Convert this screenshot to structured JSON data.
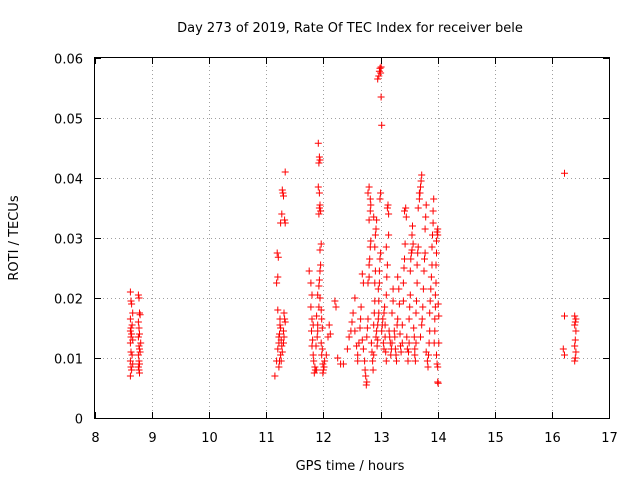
{
  "chart_data": {
    "type": "scatter",
    "title": "Day 273 of 2019, Rate Of TEC Index for receiver bele",
    "xlabel": "GPS time / hours",
    "ylabel": "ROTI / TECUs",
    "xlim": [
      8,
      17
    ],
    "ylim": [
      0,
      0.06
    ],
    "x_ticks": [
      8,
      9,
      10,
      11,
      12,
      13,
      14,
      15,
      16,
      17
    ],
    "x_tick_labels": [
      "8",
      "9",
      "10",
      "11",
      "12",
      "13",
      "14",
      "15",
      "16",
      "17"
    ],
    "y_ticks": [
      0,
      0.01,
      0.02,
      0.03,
      0.04,
      0.05,
      0.06
    ],
    "y_tick_labels": [
      "0",
      "0.01",
      "0.02",
      "0.03",
      "0.04",
      "0.05",
      "0.06"
    ],
    "grid": true,
    "marker": "plus",
    "color": "#ff0000",
    "points": [
      [
        8.62,
        0.021
      ],
      [
        8.63,
        0.0195
      ],
      [
        8.64,
        0.019
      ],
      [
        8.62,
        0.0165
      ],
      [
        8.63,
        0.015
      ],
      [
        8.62,
        0.0145
      ],
      [
        8.63,
        0.0135
      ],
      [
        8.64,
        0.014
      ],
      [
        8.62,
        0.0125
      ],
      [
        8.63,
        0.011
      ],
      [
        8.62,
        0.0095
      ],
      [
        8.63,
        0.0085
      ],
      [
        8.64,
        0.008
      ],
      [
        8.62,
        0.007
      ],
      [
        8.66,
        0.0175
      ],
      [
        8.65,
        0.0155
      ],
      [
        8.66,
        0.013
      ],
      [
        8.65,
        0.0105
      ],
      [
        8.66,
        0.009
      ],
      [
        8.76,
        0.0205
      ],
      [
        8.77,
        0.02
      ],
      [
        8.78,
        0.0175
      ],
      [
        8.79,
        0.0172
      ],
      [
        8.76,
        0.016
      ],
      [
        8.77,
        0.015
      ],
      [
        8.78,
        0.014
      ],
      [
        8.76,
        0.0135
      ],
      [
        8.77,
        0.012
      ],
      [
        8.78,
        0.0115
      ],
      [
        8.76,
        0.0105
      ],
      [
        8.77,
        0.0095
      ],
      [
        8.78,
        0.009
      ],
      [
        8.76,
        0.0085
      ],
      [
        8.77,
        0.008
      ],
      [
        8.78,
        0.0075
      ],
      [
        8.8,
        0.0125
      ],
      [
        8.79,
        0.011
      ],
      [
        11.15,
        0.007
      ],
      [
        11.18,
        0.0095
      ],
      [
        11.2,
        0.0115
      ],
      [
        11.22,
        0.0135
      ],
      [
        11.24,
        0.0155
      ],
      [
        11.2,
        0.018
      ],
      [
        11.18,
        0.0225
      ],
      [
        11.2,
        0.0235
      ],
      [
        11.19,
        0.0275
      ],
      [
        11.21,
        0.0268
      ],
      [
        11.22,
        0.0125
      ],
      [
        11.23,
        0.014
      ],
      [
        11.24,
        0.0165
      ],
      [
        11.25,
        0.015
      ],
      [
        11.26,
        0.013
      ],
      [
        11.27,
        0.012
      ],
      [
        11.28,
        0.011
      ],
      [
        11.25,
        0.0105
      ],
      [
        11.26,
        0.0095
      ],
      [
        11.25,
        0.0325
      ],
      [
        11.27,
        0.034
      ],
      [
        11.28,
        0.038
      ],
      [
        11.29,
        0.0375
      ],
      [
        11.3,
        0.037
      ],
      [
        11.31,
        0.0175
      ],
      [
        11.32,
        0.0165
      ],
      [
        11.33,
        0.016
      ],
      [
        11.3,
        0.0145
      ],
      [
        11.31,
        0.0135
      ],
      [
        11.3,
        0.0125
      ],
      [
        11.33,
        0.041
      ],
      [
        11.32,
        0.033
      ],
      [
        11.33,
        0.0325
      ],
      [
        11.22,
        0.0085
      ],
      [
        11.23,
        0.0095
      ],
      [
        11.75,
        0.0245
      ],
      [
        11.78,
        0.0225
      ],
      [
        11.8,
        0.0205
      ],
      [
        11.78,
        0.0185
      ],
      [
        11.8,
        0.0165
      ],
      [
        11.82,
        0.0155
      ],
      [
        11.79,
        0.0145
      ],
      [
        11.81,
        0.013
      ],
      [
        11.8,
        0.012
      ],
      [
        11.82,
        0.0105
      ],
      [
        11.83,
        0.0095
      ],
      [
        11.85,
        0.0085
      ],
      [
        11.84,
        0.0075
      ],
      [
        11.86,
        0.008
      ],
      [
        11.88,
        0.008
      ],
      [
        11.87,
        0.012
      ],
      [
        11.89,
        0.0135
      ],
      [
        11.9,
        0.0145
      ],
      [
        11.9,
        0.0155
      ],
      [
        11.88,
        0.017
      ],
      [
        11.92,
        0.0185
      ],
      [
        11.9,
        0.0205
      ],
      [
        11.92,
        0.022
      ],
      [
        11.93,
        0.023
      ],
      [
        11.94,
        0.0245
      ],
      [
        11.95,
        0.0255
      ],
      [
        11.92,
        0.034
      ],
      [
        11.93,
        0.035
      ],
      [
        11.94,
        0.0355
      ],
      [
        11.95,
        0.0345
      ],
      [
        11.96,
        0.029
      ],
      [
        11.94,
        0.028
      ],
      [
        11.91,
        0.0385
      ],
      [
        11.93,
        0.0375
      ],
      [
        11.92,
        0.0425
      ],
      [
        11.94,
        0.043
      ],
      [
        11.93,
        0.0435
      ],
      [
        11.91,
        0.0458
      ],
      [
        11.94,
        0.02
      ],
      [
        11.96,
        0.018
      ],
      [
        11.97,
        0.0165
      ],
      [
        11.98,
        0.015
      ],
      [
        11.96,
        0.0125
      ],
      [
        11.98,
        0.0115
      ],
      [
        11.97,
        0.0105
      ],
      [
        11.99,
        0.009
      ],
      [
        12.0,
        0.008
      ],
      [
        11.99,
        0.0075
      ],
      [
        12.01,
        0.0085
      ],
      [
        12.02,
        0.0095
      ],
      [
        12.05,
        0.0105
      ],
      [
        12.08,
        0.0135
      ],
      [
        12.1,
        0.0155
      ],
      [
        12.12,
        0.014
      ],
      [
        12.2,
        0.0195
      ],
      [
        12.22,
        0.0185
      ],
      [
        12.25,
        0.01
      ],
      [
        12.3,
        0.009
      ],
      [
        12.35,
        0.009
      ],
      [
        12.42,
        0.0115
      ],
      [
        12.45,
        0.0135
      ],
      [
        12.48,
        0.0145
      ],
      [
        12.5,
        0.016
      ],
      [
        12.52,
        0.0175
      ],
      [
        12.55,
        0.0145
      ],
      [
        12.55,
        0.02
      ],
      [
        12.58,
        0.012
      ],
      [
        12.6,
        0.0095
      ],
      [
        12.6,
        0.0105
      ],
      [
        12.62,
        0.0125
      ],
      [
        12.64,
        0.015
      ],
      [
        12.65,
        0.0165
      ],
      [
        12.66,
        0.0185
      ],
      [
        12.68,
        0.013
      ],
      [
        12.68,
        0.024
      ],
      [
        12.7,
        0.0225
      ],
      [
        12.7,
        0.0115
      ],
      [
        12.72,
        0.0095
      ],
      [
        12.73,
        0.008
      ],
      [
        12.74,
        0.007
      ],
      [
        12.75,
        0.0055
      ],
      [
        12.76,
        0.006
      ],
      [
        12.76,
        0.0135
      ],
      [
        12.77,
        0.015
      ],
      [
        12.78,
        0.0165
      ],
      [
        12.78,
        0.0225
      ],
      [
        12.8,
        0.0235
      ],
      [
        12.8,
        0.0255
      ],
      [
        12.81,
        0.0265
      ],
      [
        12.82,
        0.0285
      ],
      [
        12.83,
        0.0295
      ],
      [
        12.8,
        0.033
      ],
      [
        12.82,
        0.0345
      ],
      [
        12.83,
        0.0355
      ],
      [
        12.78,
        0.0375
      ],
      [
        12.8,
        0.0385
      ],
      [
        12.82,
        0.0365
      ],
      [
        12.84,
        0.0125
      ],
      [
        12.85,
        0.011
      ],
      [
        12.86,
        0.0095
      ],
      [
        12.87,
        0.008
      ],
      [
        12.88,
        0.0105
      ],
      [
        12.88,
        0.0155
      ],
      [
        12.89,
        0.0175
      ],
      [
        12.9,
        0.0195
      ],
      [
        12.9,
        0.0225
      ],
      [
        12.91,
        0.0245
      ],
      [
        12.9,
        0.0285
      ],
      [
        12.91,
        0.0305
      ],
      [
        12.92,
        0.0315
      ],
      [
        12.93,
        0.033
      ],
      [
        12.88,
        0.0335
      ],
      [
        12.92,
        0.0135
      ],
      [
        12.93,
        0.0145
      ],
      [
        12.94,
        0.012
      ],
      [
        12.95,
        0.013
      ],
      [
        12.95,
        0.0155
      ],
      [
        12.96,
        0.0165
      ],
      [
        12.97,
        0.0175
      ],
      [
        12.97,
        0.0195
      ],
      [
        12.96,
        0.0215
      ],
      [
        12.98,
        0.0225
      ],
      [
        12.98,
        0.0245
      ],
      [
        12.99,
        0.0265
      ],
      [
        13.0,
        0.0275
      ],
      [
        12.99,
        0.0365
      ],
      [
        13.0,
        0.0375
      ],
      [
        12.95,
        0.0565
      ],
      [
        12.97,
        0.057
      ],
      [
        12.98,
        0.0578
      ],
      [
        12.99,
        0.0583
      ],
      [
        13.0,
        0.0575
      ],
      [
        13.01,
        0.0585
      ],
      [
        13.01,
        0.0535
      ],
      [
        13.02,
        0.0488
      ],
      [
        13.02,
        0.0145
      ],
      [
        13.03,
        0.0155
      ],
      [
        13.04,
        0.0165
      ],
      [
        13.05,
        0.0125
      ],
      [
        13.06,
        0.0115
      ],
      [
        13.06,
        0.0175
      ],
      [
        13.07,
        0.0185
      ],
      [
        13.08,
        0.0135
      ],
      [
        13.08,
        0.0155
      ],
      [
        13.09,
        0.011
      ],
      [
        13.1,
        0.0095
      ],
      [
        13.1,
        0.0205
      ],
      [
        13.11,
        0.0235
      ],
      [
        13.12,
        0.0255
      ],
      [
        13.1,
        0.0285
      ],
      [
        13.12,
        0.035
      ],
      [
        13.13,
        0.0355
      ],
      [
        13.14,
        0.034
      ],
      [
        13.14,
        0.0305
      ],
      [
        13.15,
        0.0145
      ],
      [
        13.16,
        0.0135
      ],
      [
        13.17,
        0.0125
      ],
      [
        13.18,
        0.0105
      ],
      [
        13.19,
        0.0115
      ],
      [
        13.2,
        0.0125
      ],
      [
        13.2,
        0.0175
      ],
      [
        13.22,
        0.0195
      ],
      [
        13.22,
        0.0215
      ],
      [
        13.24,
        0.0145
      ],
      [
        13.25,
        0.0135
      ],
      [
        13.26,
        0.0115
      ],
      [
        13.27,
        0.0105
      ],
      [
        13.28,
        0.0095
      ],
      [
        13.29,
        0.0155
      ],
      [
        13.3,
        0.0165
      ],
      [
        13.3,
        0.0235
      ],
      [
        13.32,
        0.0215
      ],
      [
        13.33,
        0.019
      ],
      [
        13.34,
        0.014
      ],
      [
        13.35,
        0.012
      ],
      [
        13.36,
        0.011
      ],
      [
        13.38,
        0.0125
      ],
      [
        13.38,
        0.0155
      ],
      [
        13.4,
        0.0195
      ],
      [
        13.4,
        0.0225
      ],
      [
        13.41,
        0.025
      ],
      [
        13.42,
        0.0265
      ],
      [
        13.43,
        0.029
      ],
      [
        13.42,
        0.0345
      ],
      [
        13.44,
        0.035
      ],
      [
        13.45,
        0.0335
      ],
      [
        13.46,
        0.0135
      ],
      [
        13.47,
        0.0115
      ],
      [
        13.48,
        0.0095
      ],
      [
        13.49,
        0.011
      ],
      [
        13.5,
        0.0125
      ],
      [
        13.5,
        0.0165
      ],
      [
        13.51,
        0.0185
      ],
      [
        13.52,
        0.0205
      ],
      [
        13.52,
        0.0245
      ],
      [
        13.53,
        0.0265
      ],
      [
        13.54,
        0.0275
      ],
      [
        13.55,
        0.028
      ],
      [
        13.55,
        0.0305
      ],
      [
        13.56,
        0.032
      ],
      [
        13.57,
        0.029
      ],
      [
        13.58,
        0.015
      ],
      [
        13.59,
        0.0135
      ],
      [
        13.6,
        0.0115
      ],
      [
        13.6,
        0.0105
      ],
      [
        13.61,
        0.0095
      ],
      [
        13.62,
        0.0125
      ],
      [
        13.62,
        0.0175
      ],
      [
        13.63,
        0.0195
      ],
      [
        13.64,
        0.0225
      ],
      [
        13.64,
        0.0255
      ],
      [
        13.65,
        0.0275
      ],
      [
        13.66,
        0.0285
      ],
      [
        13.66,
        0.035
      ],
      [
        13.68,
        0.0365
      ],
      [
        13.69,
        0.0375
      ],
      [
        13.7,
        0.0385
      ],
      [
        13.71,
        0.0395
      ],
      [
        13.72,
        0.0405
      ],
      [
        13.68,
        0.0375
      ],
      [
        13.7,
        0.0135
      ],
      [
        13.72,
        0.0155
      ],
      [
        13.73,
        0.0165
      ],
      [
        13.74,
        0.0185
      ],
      [
        13.75,
        0.0215
      ],
      [
        13.76,
        0.0245
      ],
      [
        13.77,
        0.0265
      ],
      [
        13.78,
        0.0275
      ],
      [
        13.78,
        0.0315
      ],
      [
        13.79,
        0.0335
      ],
      [
        13.8,
        0.0355
      ],
      [
        13.8,
        0.011
      ],
      [
        13.82,
        0.0095
      ],
      [
        13.83,
        0.0085
      ],
      [
        13.84,
        0.0105
      ],
      [
        13.85,
        0.0125
      ],
      [
        13.86,
        0.0145
      ],
      [
        13.86,
        0.0175
      ],
      [
        13.87,
        0.0195
      ],
      [
        13.88,
        0.0215
      ],
      [
        13.89,
        0.0235
      ],
      [
        13.9,
        0.0255
      ],
      [
        13.9,
        0.0285
      ],
      [
        13.91,
        0.0305
      ],
      [
        13.92,
        0.0325
      ],
      [
        13.92,
        0.0345
      ],
      [
        13.93,
        0.0365
      ],
      [
        13.94,
        0.0125
      ],
      [
        13.95,
        0.0145
      ],
      [
        13.95,
        0.0165
      ],
      [
        13.96,
        0.0185
      ],
      [
        13.96,
        0.0205
      ],
      [
        13.97,
        0.0225
      ],
      [
        13.97,
        0.0255
      ],
      [
        13.98,
        0.0275
      ],
      [
        13.98,
        0.0295
      ],
      [
        13.99,
        0.031
      ],
      [
        14.0,
        0.0315
      ],
      [
        14.0,
        0.0305
      ],
      [
        13.98,
        0.0105
      ],
      [
        13.99,
        0.009
      ],
      [
        14.0,
        0.0085
      ],
      [
        14.0,
        0.006
      ],
      [
        14.01,
        0.0058
      ],
      [
        14.02,
        0.0125
      ],
      [
        14.02,
        0.017
      ],
      [
        14.01,
        0.019
      ],
      [
        16.22,
        0.0408
      ],
      [
        16.22,
        0.017
      ],
      [
        16.2,
        0.0115
      ],
      [
        16.22,
        0.0105
      ],
      [
        16.4,
        0.017
      ],
      [
        16.42,
        0.0165
      ],
      [
        16.41,
        0.016
      ],
      [
        16.4,
        0.0155
      ],
      [
        16.42,
        0.0145
      ],
      [
        16.41,
        0.013
      ],
      [
        16.4,
        0.012
      ],
      [
        16.42,
        0.011
      ],
      [
        16.41,
        0.01
      ],
      [
        16.4,
        0.0095
      ]
    ]
  }
}
